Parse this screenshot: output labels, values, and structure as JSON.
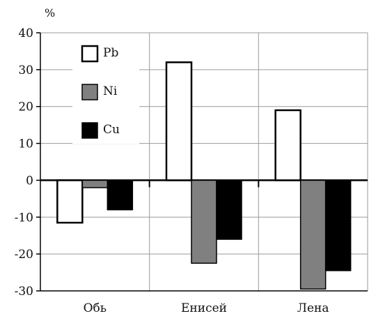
{
  "chart_data": {
    "type": "bar",
    "ylabel": "%",
    "ylim": [
      -30,
      40
    ],
    "yticks": [
      40,
      30,
      20,
      10,
      0,
      -10,
      -20,
      -30
    ],
    "categories": [
      "Обь",
      "Енисей",
      "Лена"
    ],
    "series": [
      {
        "name": "Pb",
        "color": "#ffffff",
        "values": [
          -11.5,
          32,
          19
        ]
      },
      {
        "name": "Ni",
        "color": "#808080",
        "values": [
          -2,
          -22.5,
          -29.5
        ]
      },
      {
        "name": "Cu",
        "color": "#000000",
        "values": [
          -8,
          -16,
          -24.5
        ]
      }
    ],
    "grid": true,
    "legend_position": "top-left"
  }
}
